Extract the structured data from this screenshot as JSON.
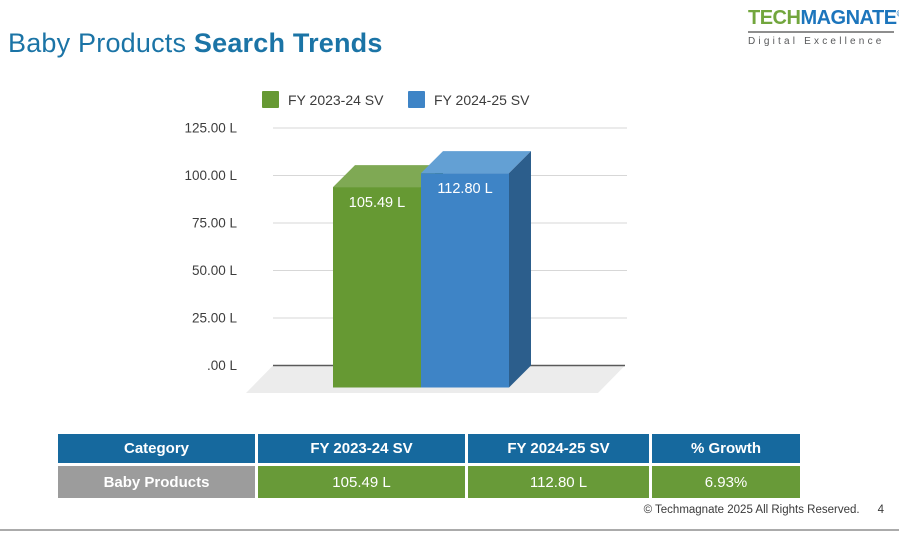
{
  "page": {
    "title_regular": "Baby Products ",
    "title_bold": "Search Trends"
  },
  "logo": {
    "name_part1": "TECH",
    "name_part2": "MAGNATE",
    "registered_mark": "®",
    "tagline": "Digital Excellence"
  },
  "chart_data": {
    "type": "bar",
    "title": "",
    "categories": [
      "Baby Products"
    ],
    "series": [
      {
        "name": "FY 2023-24 SV",
        "value": 105.49,
        "label": "105.49 L",
        "color": "#669933",
        "top_color": "#7FA954",
        "side_color": "#47731F"
      },
      {
        "name": "FY 2024-25 SV",
        "value": 112.8,
        "label": "112.80 L",
        "color": "#3E84C6",
        "top_color": "#63A0D4",
        "side_color": "#2C5E8C"
      }
    ],
    "ylim": [
      0,
      125
    ],
    "yticks": [
      "125.00 L",
      "100.00 L",
      "75.00 L",
      "50.00 L",
      "25.00 L",
      ".00 L"
    ],
    "ytick_values": [
      125,
      100,
      75,
      50,
      25,
      0
    ],
    "grid": true,
    "legend_position": "top",
    "style": "3d-bar"
  },
  "table": {
    "headers": [
      "Category",
      "FY 2023-24 SV",
      "FY 2024-25 SV",
      "% Growth"
    ],
    "rows": [
      [
        "Baby Products",
        "105.49 L",
        "112.80 L",
        "6.93%"
      ]
    ]
  },
  "footer": {
    "copyright": "© Techmagnate 2025 All Rights Reserved.",
    "page_number": "4"
  },
  "colors": {
    "title": "#1B74A6",
    "logo_green": "#72A63D",
    "logo_blue": "#1C75BC",
    "bar_green": "#669933",
    "bar_blue": "#3E84C6",
    "table_header_bg": "#16699E",
    "table_category_bg": "#9C9C9C",
    "table_value_bg": "#689A38",
    "gridline": "#D7D7D7",
    "zero_line": "#5A5A5A",
    "floor": "#ECECEC"
  }
}
